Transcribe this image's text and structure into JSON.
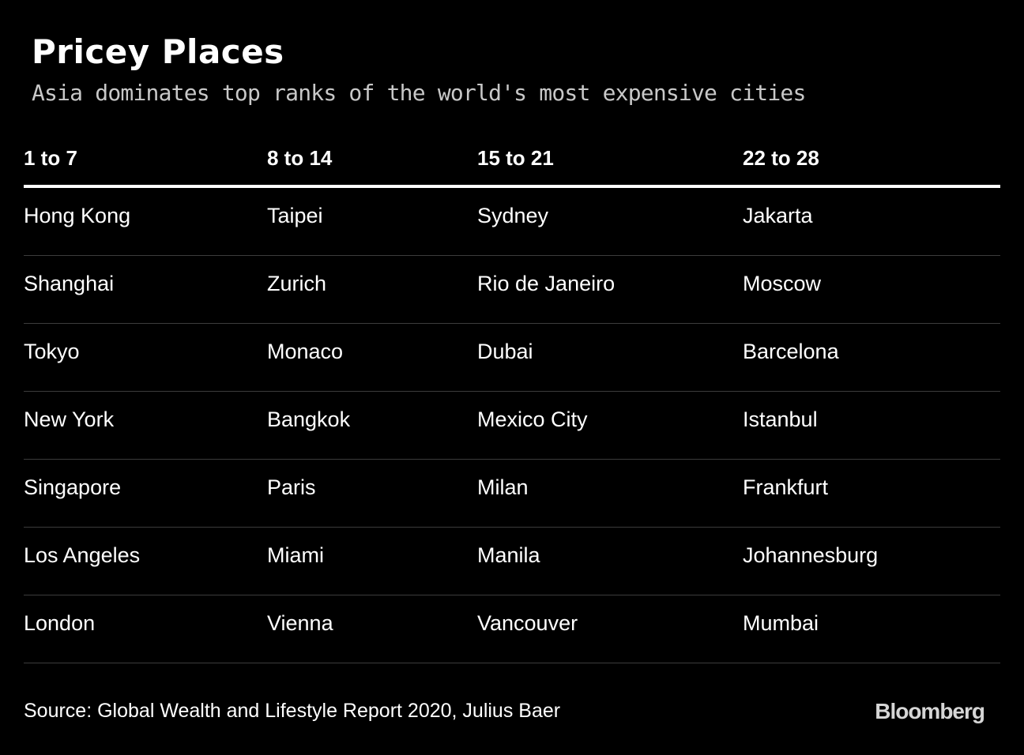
{
  "chart_data": {
    "type": "table",
    "title": "Pricey Places",
    "subtitle": "Asia dominates top ranks of the world's most expensive cities",
    "columns": [
      "1 to 7",
      "8 to 14",
      "15 to 21",
      "22 to 28"
    ],
    "rows": [
      [
        "Hong Kong",
        "Taipei",
        "Sydney",
        "Jakarta"
      ],
      [
        "Shanghai",
        "Zurich",
        "Rio de Janeiro",
        "Moscow"
      ],
      [
        "Tokyo",
        "Monaco",
        "Dubai",
        "Barcelona"
      ],
      [
        "New York",
        "Bangkok",
        "Mexico City",
        "Istanbul"
      ],
      [
        "Singapore",
        "Paris",
        "Milan",
        "Frankfurt"
      ],
      [
        "Los Angeles",
        "Miami",
        "Manila",
        "Johannesburg"
      ],
      [
        "London",
        "Vienna",
        "Vancouver",
        "Mumbai"
      ]
    ],
    "source": "Source: Global Wealth and Lifestyle Report 2020, Julius Baer",
    "brand": "Bloomberg"
  },
  "colors": {
    "background": "#000000",
    "text": "#ffffff",
    "subtitle": "#c8c8c8",
    "row_divider": "#3c3c3c",
    "header_rule": "#ffffff"
  }
}
